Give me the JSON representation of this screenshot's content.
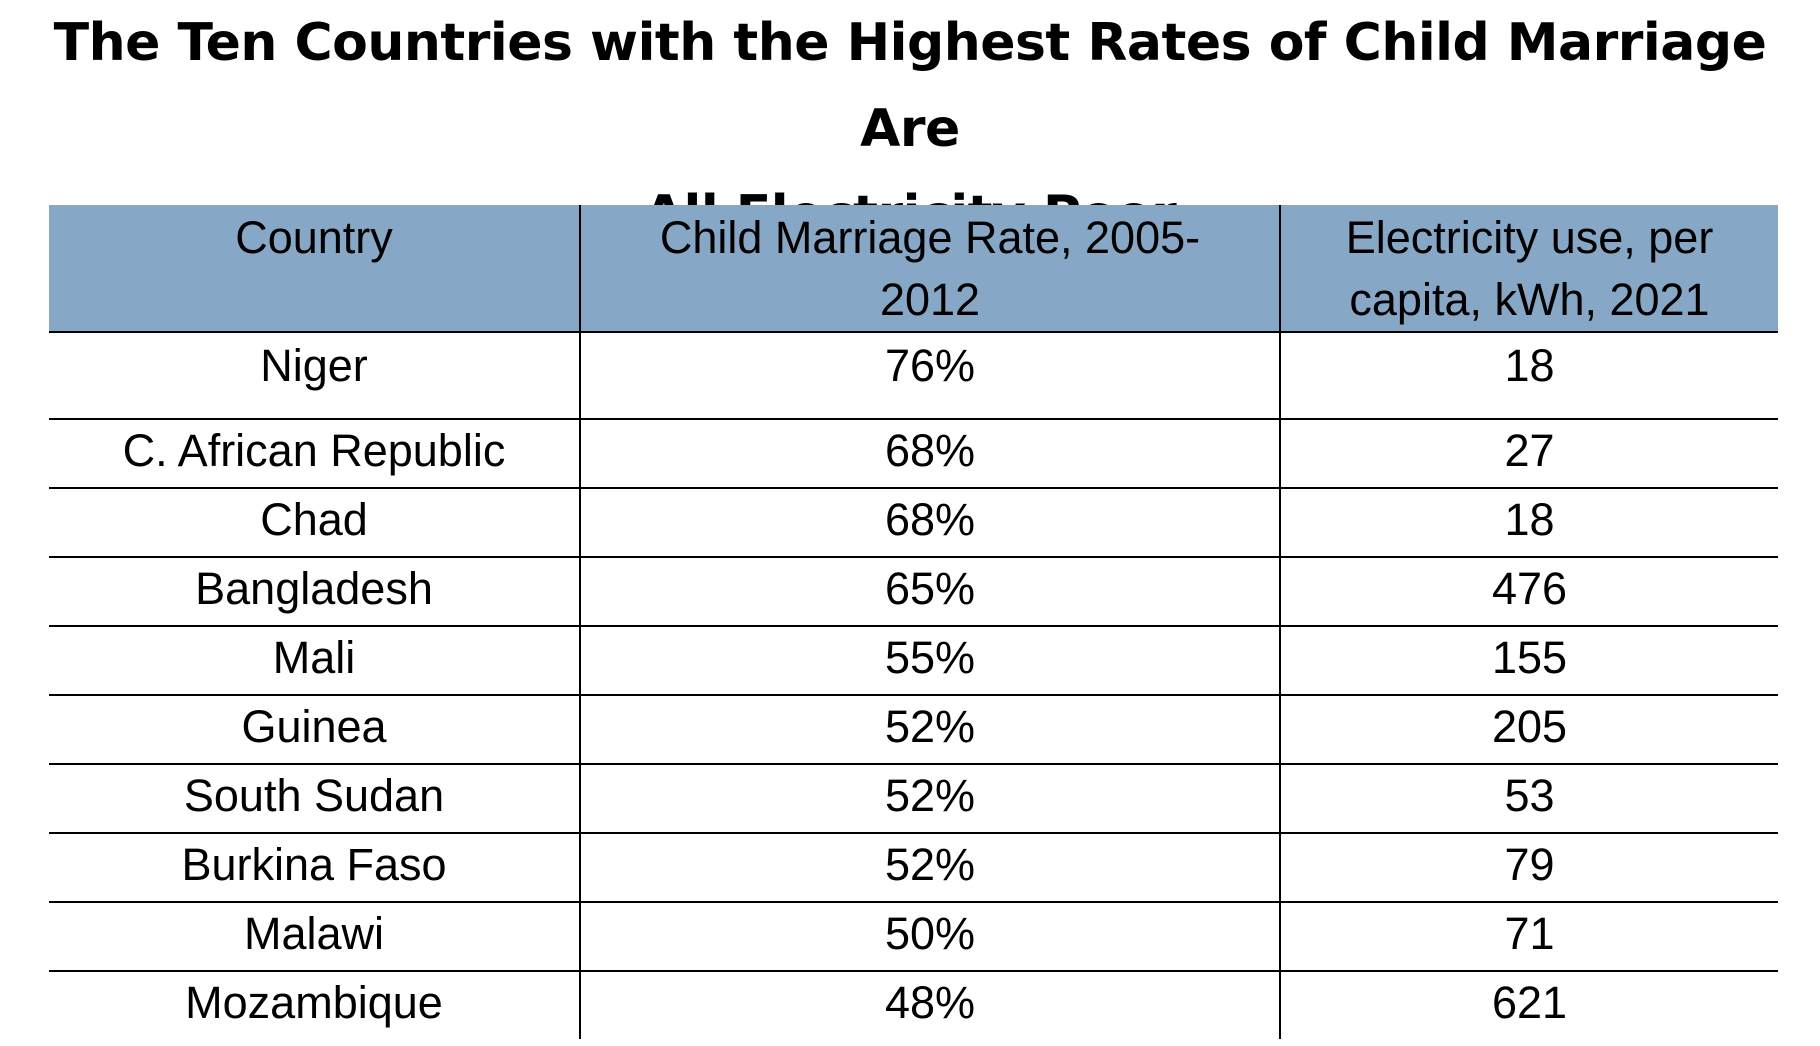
{
  "chart_data": {
    "type": "table",
    "title": "The Ten Countries with the Highest Rates of Child Marriage Are All Electricity Poor",
    "title_lines": [
      "The Ten Countries with the Highest Rates of Child Marriage Are",
      "All Electricity Poor"
    ],
    "header_color": "#87a7c6",
    "columns": [
      "Country",
      "Child Marriage Rate, 2005-2012",
      "Electricity use, per capita, kWh, 2021"
    ],
    "column_lines": [
      [
        "Country"
      ],
      [
        "Child Marriage Rate, 2005-",
        "2012"
      ],
      [
        "Electricity use, per",
        "capita, kWh, 2021"
      ]
    ],
    "rows": [
      [
        "Niger",
        "76%",
        "18"
      ],
      [
        "C. African Republic",
        "68%",
        "27"
      ],
      [
        "Chad",
        "68%",
        "18"
      ],
      [
        "Bangladesh",
        "65%",
        "476"
      ],
      [
        "Mali",
        "55%",
        "155"
      ],
      [
        "Guinea",
        "52%",
        "205"
      ],
      [
        "South Sudan",
        "52%",
        "53"
      ],
      [
        "Burkina Faso",
        "52%",
        "79"
      ],
      [
        "Malawi",
        "50%",
        "71"
      ],
      [
        "Mozambique",
        "48%",
        "621"
      ]
    ],
    "values": {
      "child_marriage_rate_pct": [
        76,
        68,
        68,
        65,
        55,
        52,
        52,
        52,
        50,
        48
      ],
      "electricity_kwh_per_capita": [
        18,
        27,
        18,
        476,
        155,
        205,
        53,
        79,
        71,
        621
      ]
    }
  }
}
